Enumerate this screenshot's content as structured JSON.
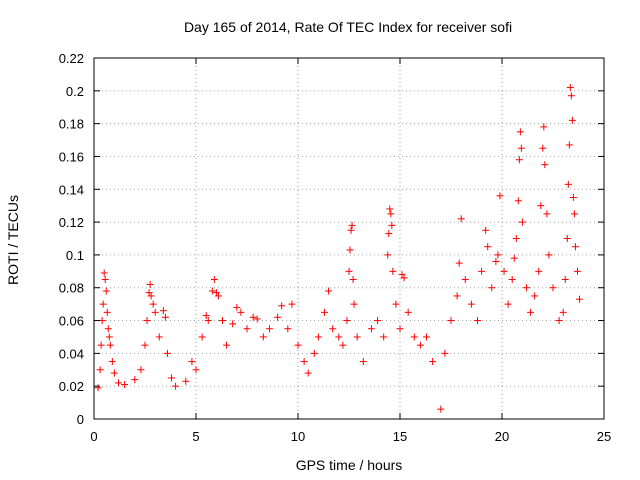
{
  "chart_data": {
    "type": "scatter",
    "title": "Day 165 of 2014, Rate Of TEC Index for receiver sofi",
    "xlabel": "GPS time / hours",
    "ylabel": "ROTI / TECUs",
    "xlim": [
      0,
      25
    ],
    "ylim": [
      0,
      0.22
    ],
    "xticks": [
      0,
      5,
      10,
      15,
      20,
      25
    ],
    "xtick_labels": [
      "0",
      "5",
      "10",
      "15",
      "20",
      "25"
    ],
    "yticks": [
      0,
      0.02,
      0.04,
      0.06,
      0.08,
      0.1,
      0.12,
      0.14,
      0.16,
      0.18,
      0.2,
      0.22
    ],
    "ytick_labels": [
      "0",
      "0.02",
      "0.04",
      "0.06",
      "0.08",
      "0.1",
      "0.12",
      "0.14",
      "0.16",
      "0.18",
      "0.2",
      "0.22"
    ],
    "grid": true,
    "marker": "+",
    "series": [
      {
        "name": "ROTI",
        "color": "#ff0000",
        "points": [
          [
            0.2,
            0.019
          ],
          [
            0.3,
            0.03
          ],
          [
            0.35,
            0.045
          ],
          [
            0.4,
            0.06
          ],
          [
            0.45,
            0.07
          ],
          [
            0.5,
            0.089
          ],
          [
            0.55,
            0.085
          ],
          [
            0.6,
            0.078
          ],
          [
            0.65,
            0.065
          ],
          [
            0.7,
            0.055
          ],
          [
            0.75,
            0.05
          ],
          [
            0.8,
            0.045
          ],
          [
            0.9,
            0.035
          ],
          [
            1.0,
            0.028
          ],
          [
            1.2,
            0.022
          ],
          [
            1.5,
            0.021
          ],
          [
            2.0,
            0.024
          ],
          [
            2.3,
            0.03
          ],
          [
            2.5,
            0.045
          ],
          [
            2.6,
            0.06
          ],
          [
            2.7,
            0.077
          ],
          [
            2.75,
            0.082
          ],
          [
            2.8,
            0.075
          ],
          [
            2.9,
            0.07
          ],
          [
            3.0,
            0.065
          ],
          [
            3.2,
            0.05
          ],
          [
            3.4,
            0.066
          ],
          [
            3.5,
            0.062
          ],
          [
            3.6,
            0.04
          ],
          [
            3.8,
            0.025
          ],
          [
            4.0,
            0.02
          ],
          [
            4.5,
            0.023
          ],
          [
            4.8,
            0.035
          ],
          [
            5.0,
            0.03
          ],
          [
            5.3,
            0.05
          ],
          [
            5.5,
            0.063
          ],
          [
            5.6,
            0.06
          ],
          [
            5.8,
            0.078
          ],
          [
            5.9,
            0.085
          ],
          [
            6.0,
            0.077
          ],
          [
            6.1,
            0.075
          ],
          [
            6.3,
            0.06
          ],
          [
            6.5,
            0.045
          ],
          [
            6.8,
            0.058
          ],
          [
            7.0,
            0.068
          ],
          [
            7.2,
            0.065
          ],
          [
            7.5,
            0.055
          ],
          [
            7.8,
            0.062
          ],
          [
            8.0,
            0.061
          ],
          [
            8.3,
            0.05
          ],
          [
            8.6,
            0.055
          ],
          [
            9.0,
            0.062
          ],
          [
            9.2,
            0.069
          ],
          [
            9.5,
            0.055
          ],
          [
            9.7,
            0.07
          ],
          [
            10.0,
            0.045
          ],
          [
            10.3,
            0.035
          ],
          [
            10.5,
            0.028
          ],
          [
            10.8,
            0.04
          ],
          [
            11.0,
            0.05
          ],
          [
            11.3,
            0.065
          ],
          [
            11.5,
            0.078
          ],
          [
            11.7,
            0.055
          ],
          [
            12.0,
            0.05
          ],
          [
            12.2,
            0.045
          ],
          [
            12.4,
            0.06
          ],
          [
            12.5,
            0.09
          ],
          [
            12.55,
            0.103
          ],
          [
            12.6,
            0.115
          ],
          [
            12.65,
            0.118
          ],
          [
            12.7,
            0.085
          ],
          [
            12.75,
            0.07
          ],
          [
            12.9,
            0.05
          ],
          [
            13.2,
            0.035
          ],
          [
            13.6,
            0.055
          ],
          [
            13.9,
            0.06
          ],
          [
            14.2,
            0.05
          ],
          [
            14.4,
            0.1
          ],
          [
            14.45,
            0.113
          ],
          [
            14.5,
            0.128
          ],
          [
            14.55,
            0.125
          ],
          [
            14.6,
            0.118
          ],
          [
            14.65,
            0.09
          ],
          [
            14.8,
            0.07
          ],
          [
            15.0,
            0.055
          ],
          [
            15.1,
            0.088
          ],
          [
            15.2,
            0.086
          ],
          [
            15.4,
            0.065
          ],
          [
            15.7,
            0.05
          ],
          [
            16.0,
            0.045
          ],
          [
            16.3,
            0.05
          ],
          [
            16.6,
            0.035
          ],
          [
            17.0,
            0.006
          ],
          [
            17.2,
            0.04
          ],
          [
            17.5,
            0.06
          ],
          [
            17.8,
            0.075
          ],
          [
            17.9,
            0.095
          ],
          [
            18.0,
            0.122
          ],
          [
            18.2,
            0.085
          ],
          [
            18.5,
            0.07
          ],
          [
            18.8,
            0.06
          ],
          [
            19.0,
            0.09
          ],
          [
            19.2,
            0.115
          ],
          [
            19.3,
            0.105
          ],
          [
            19.5,
            0.08
          ],
          [
            19.7,
            0.096
          ],
          [
            19.8,
            0.1
          ],
          [
            19.9,
            0.136
          ],
          [
            20.1,
            0.09
          ],
          [
            20.3,
            0.07
          ],
          [
            20.5,
            0.085
          ],
          [
            20.6,
            0.098
          ],
          [
            20.7,
            0.11
          ],
          [
            20.8,
            0.133
          ],
          [
            20.85,
            0.158
          ],
          [
            20.9,
            0.175
          ],
          [
            20.95,
            0.165
          ],
          [
            21.0,
            0.12
          ],
          [
            21.2,
            0.08
          ],
          [
            21.4,
            0.065
          ],
          [
            21.6,
            0.075
          ],
          [
            21.8,
            0.09
          ],
          [
            21.9,
            0.13
          ],
          [
            22.0,
            0.165
          ],
          [
            22.05,
            0.178
          ],
          [
            22.1,
            0.155
          ],
          [
            22.2,
            0.125
          ],
          [
            22.3,
            0.1
          ],
          [
            22.5,
            0.08
          ],
          [
            22.8,
            0.06
          ],
          [
            23.0,
            0.065
          ],
          [
            23.1,
            0.085
          ],
          [
            23.2,
            0.11
          ],
          [
            23.25,
            0.143
          ],
          [
            23.3,
            0.167
          ],
          [
            23.35,
            0.202
          ],
          [
            23.4,
            0.197
          ],
          [
            23.45,
            0.182
          ],
          [
            23.5,
            0.135
          ],
          [
            23.55,
            0.125
          ],
          [
            23.6,
            0.105
          ],
          [
            23.7,
            0.09
          ],
          [
            23.8,
            0.073
          ]
        ]
      }
    ]
  }
}
